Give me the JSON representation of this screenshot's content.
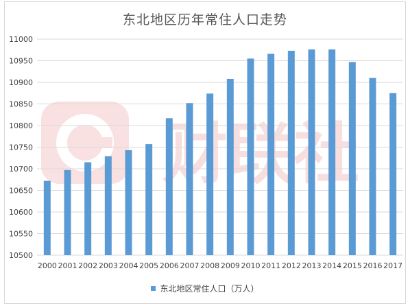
{
  "chart_data": {
    "type": "bar",
    "title": "东北地区历年常住人口走势",
    "categories": [
      "2000",
      "2001",
      "2002",
      "2003",
      "2004",
      "2005",
      "2006",
      "2007",
      "2008",
      "2009",
      "2010",
      "2011",
      "2012",
      "2013",
      "2014",
      "2015",
      "2016",
      "2017"
    ],
    "series": [
      {
        "name": "东北地区常住人口（万人）",
        "values": [
          10672,
          10697,
          10715,
          10729,
          10743,
          10757,
          10817,
          10852,
          10874,
          10908,
          10955,
          10966,
          10973,
          10976,
          10976,
          10947,
          10910,
          10875
        ]
      }
    ],
    "ylim": [
      10500,
      11000
    ],
    "yticks": [
      10500,
      10550,
      10600,
      10650,
      10700,
      10750,
      10800,
      10850,
      10900,
      10950,
      11000
    ],
    "grid": true,
    "legend_position": "bottom",
    "bar_color": "#5b9bd5",
    "grid_color": "#d9d9d9"
  },
  "watermark": {
    "text": "财联社",
    "color": "#f4c6c6"
  }
}
